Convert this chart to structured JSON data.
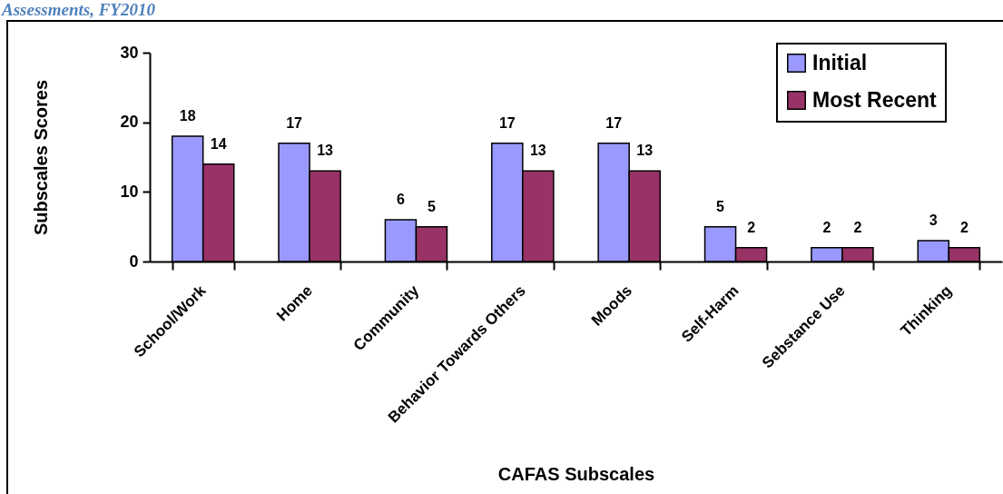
{
  "chart_data": {
    "type": "bar",
    "title": "Assessments, FY2010",
    "xlabel": "CAFAS Subscales",
    "ylabel": "Subscales Scores",
    "categories": [
      "School/Work",
      "Home",
      "Community",
      "Behavior Towards Others",
      "Moods",
      "Self-Harm",
      "Sebstance Use",
      "Thinking"
    ],
    "series": [
      {
        "name": "Initial",
        "color": "#9999ff",
        "values": [
          18,
          17,
          6,
          17,
          17,
          5,
          2,
          3
        ]
      },
      {
        "name": "Most Recent",
        "color": "#993366",
        "values": [
          14,
          13,
          5,
          13,
          13,
          2,
          2,
          2
        ]
      }
    ],
    "ylim": [
      0,
      30
    ],
    "yticks": [
      0,
      10,
      20,
      30
    ],
    "data_labels": true,
    "legend": "top right"
  }
}
